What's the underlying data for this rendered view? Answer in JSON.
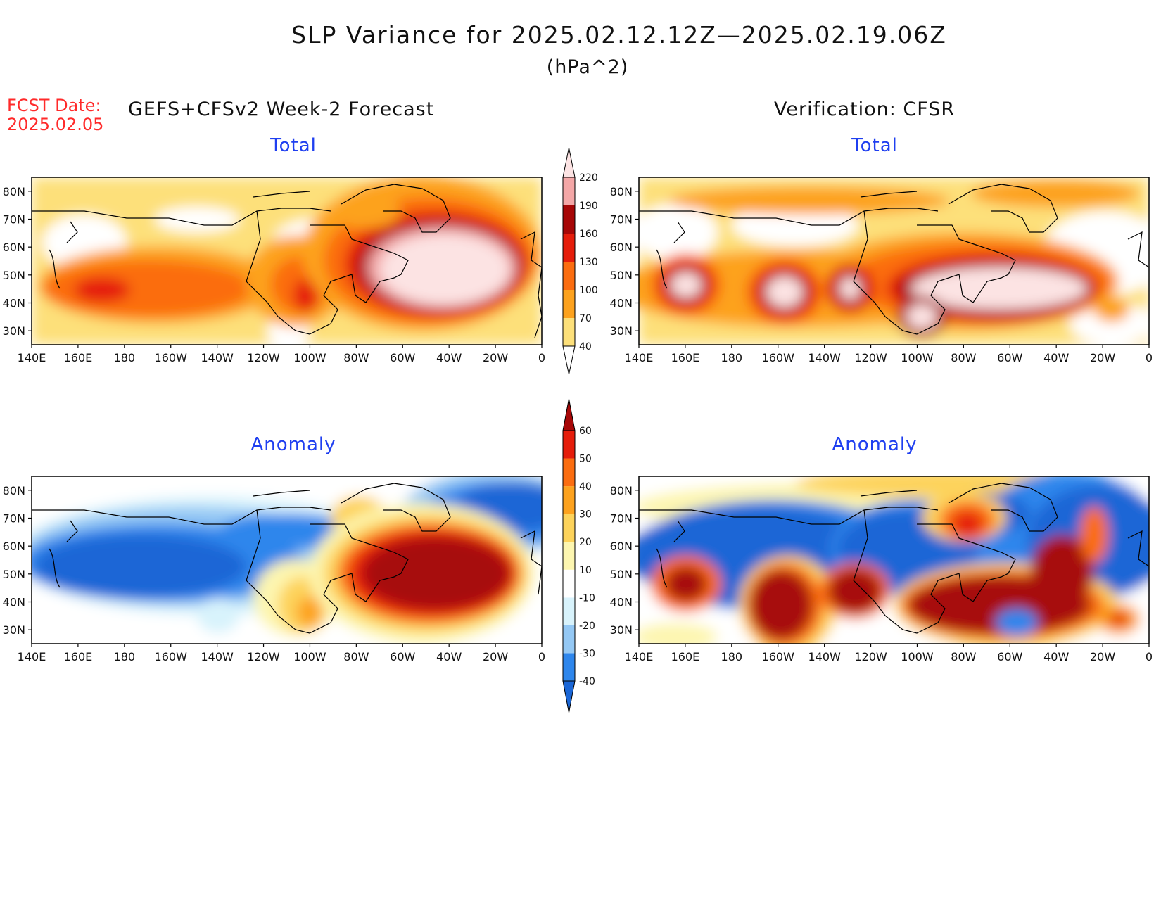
{
  "figure": {
    "title": "SLP Variance for 2025.02.12.12Z—2025.02.19.06Z",
    "units": "(hPa^2)",
    "fcst_label": "FCST Date:",
    "fcst_date": "2025.02.05",
    "left_header": "GEFS+CFSv2 Week-2 Forecast",
    "right_header": "Verification: CFSR"
  },
  "panels": {
    "forecast_total": {
      "title": "Total"
    },
    "verification_total": {
      "title": "Total"
    },
    "forecast_anomaly": {
      "title": "Anomaly"
    },
    "verification_anomaly": {
      "title": "Anomaly"
    }
  },
  "axes": {
    "lon_ticks": [
      "140E",
      "160E",
      "180",
      "160W",
      "140W",
      "120W",
      "100W",
      "80W",
      "60W",
      "40W",
      "20W",
      "0"
    ],
    "lat_ticks": [
      "80N",
      "70N",
      "60N",
      "50N",
      "40N",
      "30N"
    ]
  },
  "colorbars": {
    "total": {
      "levels": [
        "40",
        "70",
        "100",
        "130",
        "160",
        "190",
        "220"
      ],
      "colors": [
        "#fde07a",
        "#fda21e",
        "#fb6d10",
        "#e51d0b",
        "#a70707",
        "#f4a7a7",
        "#fce3e3"
      ]
    },
    "anomaly": {
      "levels": [
        "-40",
        "-30",
        "-20",
        "-10",
        "10",
        "20",
        "30",
        "40",
        "50",
        "60"
      ],
      "colors": [
        "#1a66d6",
        "#2e86ec",
        "#94c8f4",
        "#d8f3fc",
        "#ffffff",
        "#fdf6b0",
        "#fdd35b",
        "#fda21e",
        "#fb6d10",
        "#e51d0b",
        "#a70707"
      ]
    }
  },
  "chart_data": [
    {
      "type": "heatmap",
      "panel": "GEFS+CFSv2 Week-2 Forecast — Total",
      "x_range": [
        "140E",
        "0"
      ],
      "y_range": [
        "25N",
        "85N"
      ],
      "features": [
        {
          "region": "North Atlantic (45N, 45W)",
          "value_range": [
            190,
            250
          ]
        },
        {
          "region": "North Pacific (45N, 175E)",
          "value_range": [
            130,
            160
          ]
        },
        {
          "region": "central North America (40N, 100W)",
          "value_range": [
            130,
            160
          ]
        }
      ]
    },
    {
      "type": "heatmap",
      "panel": "Verification: CFSR — Total",
      "x_range": [
        "140E",
        "0"
      ],
      "y_range": [
        "25N",
        "85N"
      ],
      "features": [
        {
          "region": "North Atlantic / E US (45N, 60W)",
          "value_range": [
            190,
            250
          ]
        },
        {
          "region": "NW Pacific (47N, 163E)",
          "value_range": [
            190,
            250
          ]
        },
        {
          "region": "NE Pacific (45N, 150W)",
          "value_range": [
            190,
            250
          ]
        },
        {
          "region": "E Pacific (45N, 128W)",
          "value_range": [
            190,
            250
          ]
        }
      ]
    },
    {
      "type": "heatmap",
      "panel": "GEFS+CFSv2 Week-2 Forecast — Anomaly",
      "x_range": [
        "140E",
        "0"
      ],
      "y_range": [
        "25N",
        "85N"
      ],
      "features": [
        {
          "region": "North Atlantic (50N, 50W)",
          "value_range": [
            60,
            80
          ]
        },
        {
          "region": "North Pacific (50N, 170W)",
          "value_range": [
            -40,
            -30
          ]
        },
        {
          "region": "Greenland / Arctic (75N, 20W)",
          "value_range": [
            -40,
            -30
          ]
        }
      ]
    },
    {
      "type": "heatmap",
      "panel": "Verification: CFSR — Anomaly",
      "x_range": [
        "140E",
        "0"
      ],
      "y_range": [
        "25N",
        "85N"
      ],
      "features": [
        {
          "region": "E US / Atlantic (40N, 75W)",
          "value_range": [
            60,
            80
          ]
        },
        {
          "region": "NE Pacific (40N, 150W)",
          "value_range": [
            60,
            80
          ]
        },
        {
          "region": "NW Pacific (45N, 160E)",
          "value_range": [
            60,
            80
          ]
        },
        {
          "region": "broad Pacific / Canada",
          "value_range": [
            -40,
            -30
          ]
        }
      ]
    }
  ]
}
